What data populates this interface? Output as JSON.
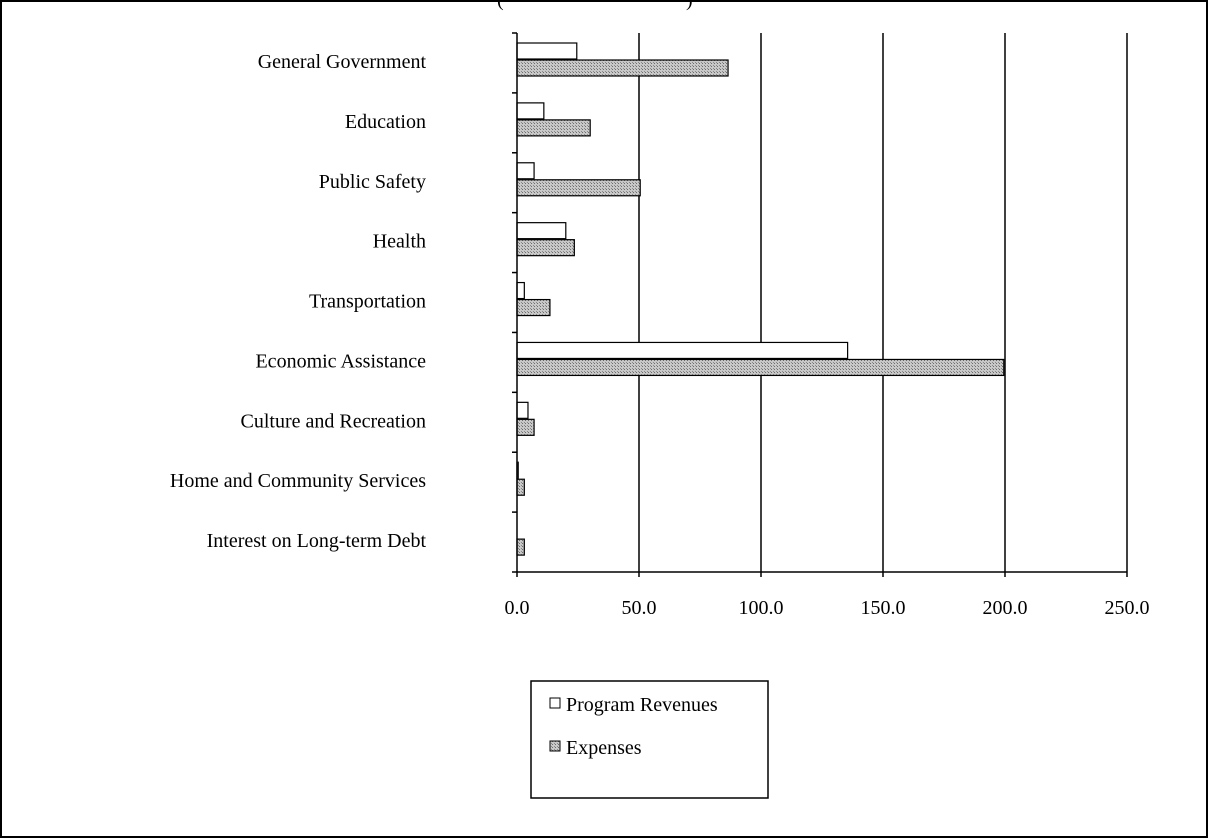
{
  "chart_data": {
    "type": "bar",
    "orientation": "horizontal",
    "categories": [
      "General Government",
      "Education",
      "Public Safety",
      "Health",
      "Transportation",
      "Economic Assistance",
      "Culture and Recreation",
      "Home and Community Services",
      "Interest on Long-term Debt"
    ],
    "series": [
      {
        "name": "Program Revenues",
        "values": [
          24.5,
          11.0,
          7.0,
          20.0,
          3.0,
          135.5,
          4.5,
          0.5,
          0.0
        ],
        "color": "#ffffff"
      },
      {
        "name": "Expenses",
        "values": [
          86.5,
          30.0,
          50.5,
          23.5,
          13.5,
          199.5,
          7.0,
          3.0,
          3.0
        ],
        "color": "#bdbdbd"
      }
    ],
    "x_ticks": [
      "0.0",
      "50.0",
      "100.0",
      "150.0",
      "200.0",
      "250.0"
    ],
    "xlim": [
      0,
      250
    ],
    "grid": true,
    "legend_position": "bottom-center",
    "title": "(",
    "title_right": ")"
  }
}
